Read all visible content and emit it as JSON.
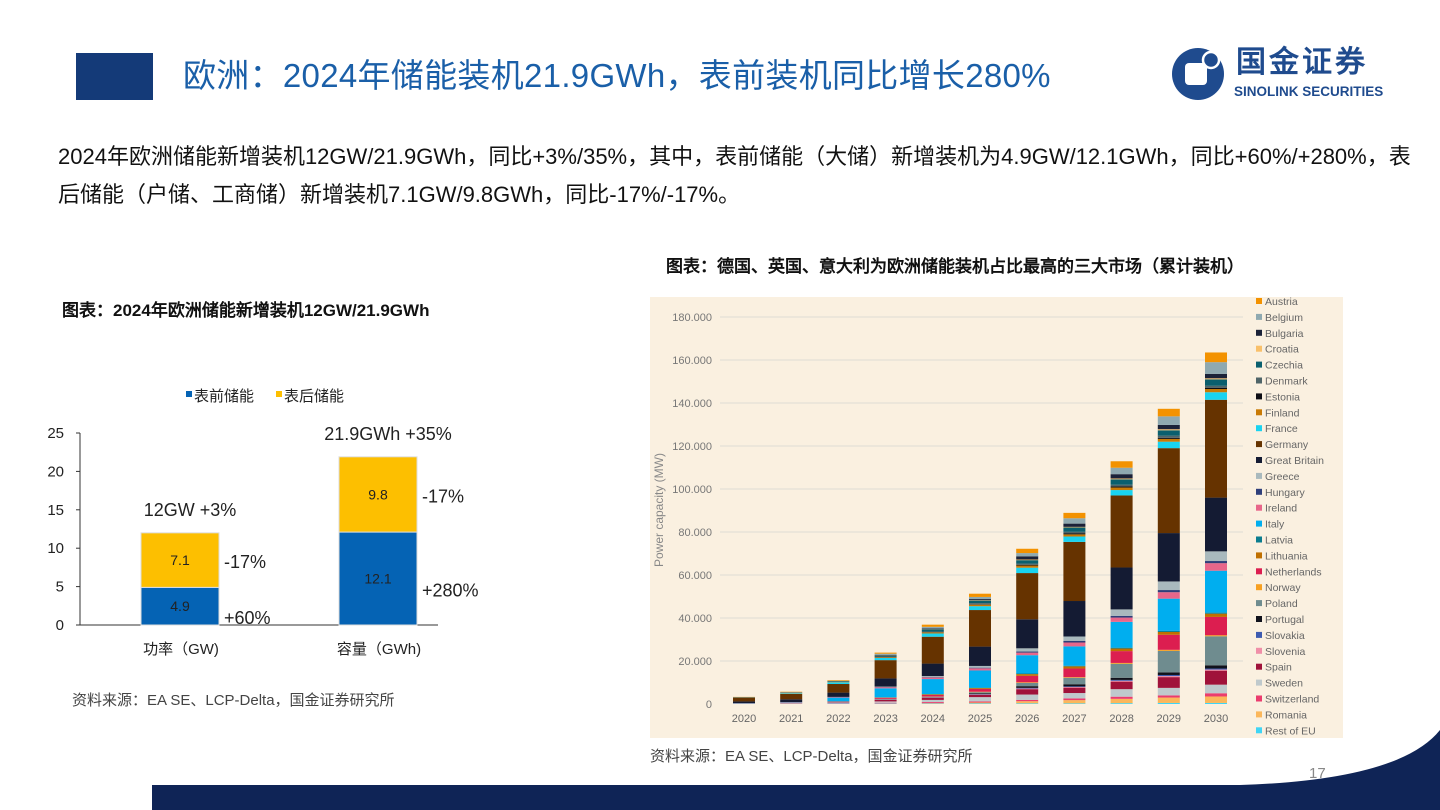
{
  "header": {
    "title": "欧洲：2024年储能装机21.9GWh，表前装机同比增长280%",
    "logo_cn": "国金证券",
    "logo_en": "SINOLINK SECURITIES"
  },
  "intro_text": "2024年欧洲储能新增装机12GW/21.9GWh，同比+3%/35%，其中，表前储能（大储）新增装机为4.9GW/12.1GWh，同比+60%/+280%，表后储能（户储、工商储）新增装机7.1GW/9.8GWh，同比-17%/-17%。",
  "page_number": "17",
  "chart_data": [
    {
      "type": "bar",
      "stacked": true,
      "title": "图表：2024年欧洲储能新增装机12GW/21.9GWh",
      "categories": [
        "功率（GW)",
        "容量（GWh)"
      ],
      "series": [
        {
          "name": "表前储能",
          "color": "#0563b4",
          "values": [
            4.9,
            12.1
          ],
          "value_labels": [
            "4.9",
            "12.1"
          ],
          "change_labels": [
            "+60%",
            "+280%"
          ]
        },
        {
          "name": "表后储能",
          "color": "#fdbf00",
          "values": [
            7.1,
            9.8
          ],
          "value_labels": [
            "7.1",
            "9.8"
          ],
          "change_labels": [
            "-17%",
            "-17%"
          ]
        }
      ],
      "total_labels": [
        "12GW  +3%",
        "21.9GWh  +35%"
      ],
      "ylim": [
        0,
        25
      ],
      "yticks": [
        "0",
        "5",
        "10",
        "15",
        "20",
        "25"
      ],
      "legend": "top",
      "grid": false,
      "source": "资料来源：EA SE、LCP-Delta，国金证券研究所"
    },
    {
      "type": "bar",
      "stacked": true,
      "title": "图表：德国、英国、意大利为欧洲储能装机占比最高的三大市场（累计装机）",
      "ylabel": "Power capacity (MW)",
      "ylim": [
        0,
        180000
      ],
      "yticks": [
        "0",
        "20.000",
        "40.000",
        "60.000",
        "80.000",
        "100.000",
        "120.000",
        "140.000",
        "160.000",
        "180.000"
      ],
      "grid": true,
      "legend": "right",
      "categories": [
        "2020",
        "2021",
        "2022",
        "2023",
        "2024",
        "2025",
        "2026",
        "2027",
        "2028",
        "2029",
        "2030"
      ],
      "series": [
        {
          "name": "Austria",
          "color": "#f39200",
          "values": [
            100,
            200,
            300,
            500,
            1000,
            1500,
            2000,
            2500,
            3000,
            3500,
            4500
          ]
        },
        {
          "name": "Belgium",
          "color": "#8fa9b0",
          "values": [
            0,
            100,
            100,
            600,
            800,
            1000,
            1500,
            2500,
            3000,
            4000,
            5500
          ]
        },
        {
          "name": "Bulgaria",
          "color": "#1b2238",
          "values": [
            0,
            0,
            0,
            200,
            300,
            500,
            1500,
            1500,
            2000,
            2000,
            2000
          ]
        },
        {
          "name": "Croatia",
          "color": "#f9c06a",
          "values": [
            0,
            0,
            0,
            100,
            100,
            200,
            300,
            300,
            400,
            500,
            500
          ]
        },
        {
          "name": "Czechia",
          "color": "#0a5f6e",
          "values": [
            0,
            100,
            200,
            400,
            1000,
            1200,
            1600,
            2000,
            2500,
            2500,
            3000
          ]
        },
        {
          "name": "Denmark",
          "color": "#4f6468",
          "values": [
            100,
            200,
            200,
            300,
            300,
            500,
            600,
            800,
            800,
            1000,
            1000
          ]
        },
        {
          "name": "Estonia",
          "color": "#0d0d14",
          "values": [
            0,
            0,
            0,
            100,
            100,
            200,
            300,
            400,
            500,
            500,
            500
          ]
        },
        {
          "name": "Finland",
          "color": "#c97a05",
          "values": [
            0,
            100,
            200,
            300,
            500,
            700,
            1000,
            1000,
            1200,
            1300,
            1500
          ]
        },
        {
          "name": "France",
          "color": "#19d3f0",
          "values": [
            100,
            300,
            800,
            1000,
            1500,
            1800,
            2500,
            2500,
            2500,
            3000,
            3500
          ]
        },
        {
          "name": "Germany",
          "color": "#663300",
          "values": [
            1800,
            2500,
            4000,
            8500,
            12500,
            17000,
            21500,
            27500,
            33500,
            39500,
            45500
          ]
        },
        {
          "name": "Great Britain",
          "color": "#141b33",
          "values": [
            800,
            1300,
            2000,
            3800,
            5800,
            9000,
            13500,
            16500,
            19500,
            22500,
            25000
          ]
        },
        {
          "name": "Greece",
          "color": "#a9b9bd",
          "values": [
            0,
            0,
            0,
            200,
            500,
            800,
            1500,
            2000,
            3000,
            4000,
            4500
          ]
        },
        {
          "name": "Hungary",
          "color": "#2f3f7a",
          "values": [
            0,
            0,
            0,
            100,
            200,
            300,
            500,
            800,
            800,
            1000,
            1000
          ]
        },
        {
          "name": "Ireland",
          "color": "#e8668a",
          "values": [
            0,
            100,
            300,
            500,
            700,
            1000,
            1200,
            1800,
            2000,
            3000,
            3500
          ]
        },
        {
          "name": "Italy",
          "color": "#00aeef",
          "values": [
            100,
            200,
            1800,
            4200,
            7000,
            8000,
            8500,
            9000,
            12000,
            15000,
            19500
          ]
        },
        {
          "name": "Latvia",
          "color": "#0b7d8f",
          "values": [
            0,
            0,
            0,
            100,
            100,
            200,
            300,
            300,
            400,
            500,
            500
          ]
        },
        {
          "name": "Lithuania",
          "color": "#c07000",
          "values": [
            0,
            0,
            100,
            100,
            300,
            400,
            800,
            1000,
            1200,
            1300,
            1500
          ]
        },
        {
          "name": "Netherlands",
          "color": "#dc1e50",
          "values": [
            0,
            100,
            200,
            500,
            700,
            1300,
            3000,
            4000,
            5500,
            7000,
            8500
          ]
        },
        {
          "name": "Norway",
          "color": "#f7a021",
          "values": [
            0,
            0,
            0,
            100,
            100,
            200,
            300,
            300,
            400,
            500,
            500
          ]
        },
        {
          "name": "Poland",
          "color": "#6f8c8f",
          "values": [
            0,
            0,
            0,
            100,
            200,
            500,
            1500,
            3000,
            6500,
            10000,
            13500
          ]
        },
        {
          "name": "Portugal",
          "color": "#10121c",
          "values": [
            0,
            0,
            0,
            100,
            100,
            400,
            800,
            1000,
            1000,
            1200,
            1500
          ]
        },
        {
          "name": "Slovakia",
          "color": "#3d5bb0",
          "values": [
            0,
            0,
            0,
            100,
            100,
            200,
            300,
            300,
            400,
            500,
            500
          ]
        },
        {
          "name": "Slovenia",
          "color": "#f08fa8",
          "values": [
            0,
            0,
            0,
            100,
            100,
            200,
            300,
            300,
            400,
            500,
            500
          ]
        },
        {
          "name": "Spain",
          "color": "#a0123a",
          "values": [
            0,
            100,
            200,
            700,
            1000,
            1000,
            2500,
            2500,
            3500,
            5000,
            6500
          ]
        },
        {
          "name": "Sweden",
          "color": "#bfc9cc",
          "values": [
            100,
            200,
            300,
            600,
            1000,
            2000,
            2500,
            2500,
            3500,
            3500,
            4000
          ]
        },
        {
          "name": "Switzerland",
          "color": "#eb3c6e",
          "values": [
            100,
            100,
            200,
            300,
            500,
            500,
            600,
            800,
            1000,
            1000,
            1500
          ]
        },
        {
          "name": "Romania",
          "color": "#fbb75b",
          "values": [
            0,
            0,
            0,
            100,
            200,
            400,
            1000,
            1500,
            2000,
            2500,
            3000
          ]
        },
        {
          "name": "Rest of EU",
          "color": "#40d5f5",
          "values": [
            100,
            100,
            200,
            200,
            200,
            300,
            300,
            300,
            400,
            500,
            500
          ]
        }
      ],
      "source": "资料来源：EA SE、LCP-Delta，国金证券研究所"
    }
  ]
}
